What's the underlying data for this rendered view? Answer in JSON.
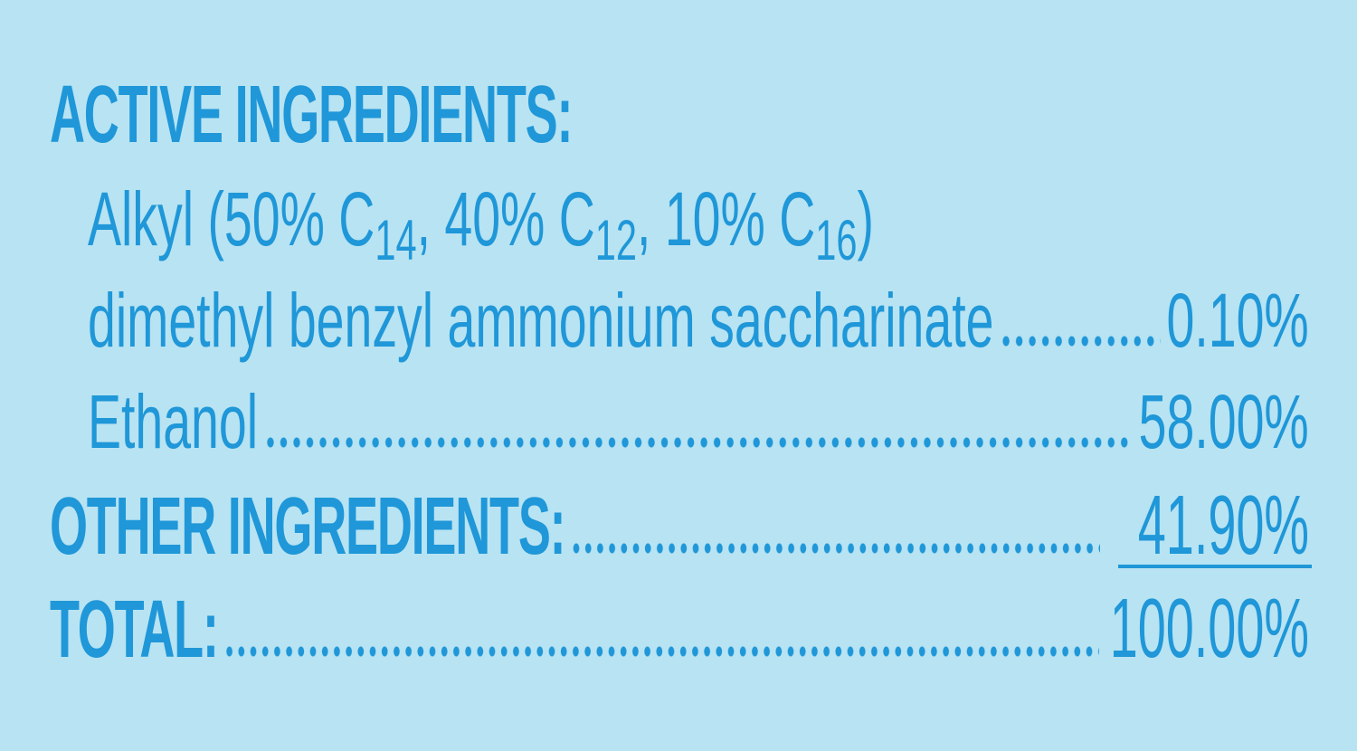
{
  "colors": {
    "background": "#b8e3f2",
    "text": "#1f97d8"
  },
  "active_heading": "ACTIVE INGREDIENTS:",
  "alkyl_line": {
    "prefix": "Alkyl (50% C",
    "sub1": "14",
    "mid1": ", 40% C",
    "sub2": "12",
    "mid2": ", 10% C",
    "sub3": "16",
    "suffix": ")"
  },
  "rows": [
    {
      "label": "dimethyl benzyl ammonium saccharinate",
      "value": "0.10%"
    },
    {
      "label": "Ethanol",
      "value": "58.00%"
    }
  ],
  "other": {
    "label": "OTHER INGREDIENTS:",
    "value": "41.90%"
  },
  "total": {
    "label": "TOTAL:",
    "value": "100.00%"
  }
}
